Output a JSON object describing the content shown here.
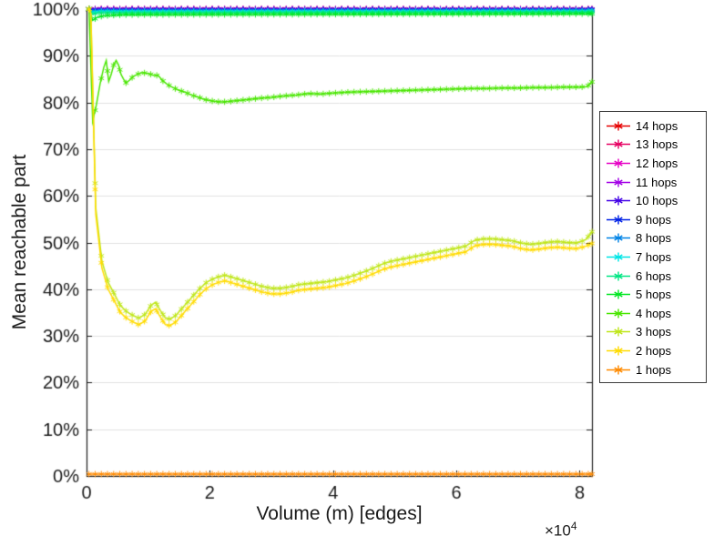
{
  "figure": {
    "background": "#ffffff",
    "box_color": "#1a1a1a",
    "grid_color": "#e0e0e0"
  },
  "chart_data": {
    "type": "line",
    "title": "",
    "xlabel": "Volume (m) [edges]",
    "ylabel": "Mean reachable part",
    "x_exponent": {
      "base": "×10",
      "power": "4"
    },
    "xlim": [
      0,
      82000
    ],
    "ylim": [
      0,
      100
    ],
    "grid": "horizontal",
    "legend_position": "right-outside",
    "marker": "asterisk",
    "sample_step": 1000,
    "xticks": [
      0,
      20000,
      40000,
      60000,
      80000
    ],
    "xtick_labels": [
      "0",
      "2",
      "4",
      "6",
      "8"
    ],
    "yticks": [
      0,
      10,
      20,
      30,
      40,
      50,
      60,
      70,
      80,
      90,
      100
    ],
    "ytick_labels": [
      "0%",
      "10%",
      "20%",
      "30%",
      "40%",
      "50%",
      "60%",
      "70%",
      "80%",
      "90%",
      "100%"
    ],
    "series": [
      {
        "name": "1 hops",
        "color": "#FF8A00",
        "points": [
          [
            400,
            0.4
          ],
          [
            82000,
            0.4
          ]
        ]
      },
      {
        "name": "2 hops",
        "color": "#FFDB00",
        "points": [
          [
            400,
            100
          ],
          [
            700,
            99
          ],
          [
            1500,
            56
          ],
          [
            2500,
            44.5
          ],
          [
            3500,
            40
          ],
          [
            4500,
            37.5
          ],
          [
            5500,
            35
          ],
          [
            6500,
            33.8
          ],
          [
            7500,
            33
          ],
          [
            8500,
            32.4
          ],
          [
            9500,
            33.2
          ],
          [
            10500,
            35.3
          ],
          [
            11200,
            35.8
          ],
          [
            12000,
            34
          ],
          [
            12800,
            32.4
          ],
          [
            13600,
            32.2
          ],
          [
            14500,
            33
          ],
          [
            15500,
            34.5
          ],
          [
            16500,
            36
          ],
          [
            17500,
            37.5
          ],
          [
            18500,
            39
          ],
          [
            19500,
            40.2
          ],
          [
            20500,
            41
          ],
          [
            21500,
            41.5
          ],
          [
            22500,
            41.8
          ],
          [
            23500,
            41.4
          ],
          [
            24500,
            41
          ],
          [
            25500,
            40.6
          ],
          [
            27000,
            40
          ],
          [
            28500,
            39.4
          ],
          [
            30000,
            39
          ],
          [
            31500,
            39
          ],
          [
            33000,
            39.3
          ],
          [
            34500,
            39.8
          ],
          [
            36000,
            40
          ],
          [
            37500,
            40.2
          ],
          [
            39000,
            40.4
          ],
          [
            40500,
            40.8
          ],
          [
            42000,
            41.2
          ],
          [
            43500,
            41.8
          ],
          [
            45000,
            42.5
          ],
          [
            46500,
            43.3
          ],
          [
            48000,
            44.2
          ],
          [
            49500,
            44.8
          ],
          [
            51000,
            45.2
          ],
          [
            52500,
            45.6
          ],
          [
            54000,
            46
          ],
          [
            55500,
            46.4
          ],
          [
            57000,
            46.8
          ],
          [
            58500,
            47.2
          ],
          [
            60000,
            47.6
          ],
          [
            61500,
            48
          ],
          [
            63000,
            49.3
          ],
          [
            64500,
            49.6
          ],
          [
            66000,
            49.6
          ],
          [
            67500,
            49.4
          ],
          [
            69000,
            49.2
          ],
          [
            70500,
            48.7
          ],
          [
            72000,
            48.4
          ],
          [
            73500,
            48.6
          ],
          [
            75000,
            48.9
          ],
          [
            76500,
            49
          ],
          [
            78000,
            48.8
          ],
          [
            79500,
            48.7
          ],
          [
            81000,
            49.2
          ],
          [
            82000,
            49.8
          ]
        ]
      },
      {
        "name": "3 hops",
        "color": "#BFE619",
        "points": [
          [
            400,
            100
          ],
          [
            700,
            99.2
          ],
          [
            1500,
            57.5
          ],
          [
            2500,
            46
          ],
          [
            3500,
            41.5
          ],
          [
            4500,
            39
          ],
          [
            5500,
            36.5
          ],
          [
            6500,
            35.2
          ],
          [
            7500,
            34.4
          ],
          [
            8500,
            33.8
          ],
          [
            9500,
            34.6
          ],
          [
            10500,
            36.6
          ],
          [
            11200,
            37.2
          ],
          [
            12000,
            35.4
          ],
          [
            12800,
            33.8
          ],
          [
            13600,
            33.6
          ],
          [
            14500,
            34.4
          ],
          [
            15500,
            35.9
          ],
          [
            16500,
            37.4
          ],
          [
            17500,
            38.9
          ],
          [
            18500,
            40.3
          ],
          [
            19500,
            41.5
          ],
          [
            20500,
            42.2
          ],
          [
            21500,
            42.7
          ],
          [
            22500,
            43
          ],
          [
            23500,
            42.6
          ],
          [
            24500,
            42.2
          ],
          [
            25500,
            41.8
          ],
          [
            27000,
            41.2
          ],
          [
            28500,
            40.6
          ],
          [
            30000,
            40.2
          ],
          [
            31500,
            40.2
          ],
          [
            33000,
            40.5
          ],
          [
            34500,
            41
          ],
          [
            36000,
            41.2
          ],
          [
            37500,
            41.4
          ],
          [
            39000,
            41.6
          ],
          [
            40500,
            42
          ],
          [
            42000,
            42.4
          ],
          [
            43500,
            43
          ],
          [
            45000,
            43.7
          ],
          [
            46500,
            44.5
          ],
          [
            48000,
            45.4
          ],
          [
            49500,
            46
          ],
          [
            51000,
            46.4
          ],
          [
            52500,
            46.8
          ],
          [
            54000,
            47.2
          ],
          [
            55500,
            47.6
          ],
          [
            57000,
            48
          ],
          [
            58500,
            48.4
          ],
          [
            60000,
            48.8
          ],
          [
            61500,
            49.2
          ],
          [
            63000,
            50.5
          ],
          [
            64500,
            50.8
          ],
          [
            66000,
            50.8
          ],
          [
            67500,
            50.6
          ],
          [
            69000,
            50.4
          ],
          [
            70500,
            49.9
          ],
          [
            72000,
            49.6
          ],
          [
            73500,
            49.8
          ],
          [
            75000,
            50.1
          ],
          [
            76500,
            50.2
          ],
          [
            78000,
            50
          ],
          [
            79500,
            49.9
          ],
          [
            81000,
            50.6
          ],
          [
            82000,
            52.3
          ]
        ]
      },
      {
        "name": "4 hops",
        "color": "#49E600",
        "points": [
          [
            400,
            100
          ],
          [
            1000,
            76
          ],
          [
            1600,
            79.5
          ],
          [
            2200,
            84
          ],
          [
            2800,
            87.5
          ],
          [
            3200,
            89
          ],
          [
            3600,
            84.5
          ],
          [
            4000,
            86
          ],
          [
            4400,
            88
          ],
          [
            4800,
            89
          ],
          [
            5200,
            88
          ],
          [
            5600,
            86
          ],
          [
            6000,
            85
          ],
          [
            6400,
            84.2
          ],
          [
            7000,
            84.8
          ],
          [
            7600,
            85.6
          ],
          [
            8200,
            86
          ],
          [
            9000,
            86.4
          ],
          [
            10000,
            86.2
          ],
          [
            11000,
            85.8
          ],
          [
            11600,
            85.8
          ],
          [
            12400,
            84.6
          ],
          [
            13200,
            83.8
          ],
          [
            14000,
            83.2
          ],
          [
            15000,
            82.6
          ],
          [
            16000,
            82.2
          ],
          [
            17000,
            81.6
          ],
          [
            18000,
            81.2
          ],
          [
            19000,
            80.7
          ],
          [
            20000,
            80.4
          ],
          [
            21000,
            80.2
          ],
          [
            22000,
            80.1
          ],
          [
            23000,
            80.2
          ],
          [
            24500,
            80.4
          ],
          [
            26000,
            80.6
          ],
          [
            28000,
            80.9
          ],
          [
            30000,
            81.1
          ],
          [
            32000,
            81.4
          ],
          [
            34000,
            81.6
          ],
          [
            36000,
            81.9
          ],
          [
            38000,
            81.8
          ],
          [
            40000,
            82
          ],
          [
            42500,
            82.2
          ],
          [
            45000,
            82.3
          ],
          [
            47500,
            82.4
          ],
          [
            50000,
            82.5
          ],
          [
            52500,
            82.6
          ],
          [
            55000,
            82.7
          ],
          [
            57500,
            82.8
          ],
          [
            60000,
            82.9
          ],
          [
            62500,
            83
          ],
          [
            65000,
            83
          ],
          [
            67500,
            83.1
          ],
          [
            70000,
            83.1
          ],
          [
            72500,
            83.2
          ],
          [
            75000,
            83.2
          ],
          [
            77500,
            83.3
          ],
          [
            80000,
            83.3
          ],
          [
            81200,
            83.4
          ],
          [
            82000,
            84.4
          ]
        ]
      },
      {
        "name": "5 hops",
        "color": "#00E621",
        "points": [
          [
            400,
            100
          ],
          [
            1000,
            97.6
          ],
          [
            1800,
            98.3
          ],
          [
            3000,
            98.6
          ],
          [
            6000,
            98.8
          ],
          [
            82000,
            99
          ]
        ]
      },
      {
        "name": "6 hops",
        "color": "#00E683",
        "points": [
          [
            400,
            100
          ],
          [
            1000,
            98.9
          ],
          [
            2000,
            99.2
          ],
          [
            82000,
            99.35
          ]
        ]
      },
      {
        "name": "7 hops",
        "color": "#00E6E6",
        "points": [
          [
            400,
            100
          ],
          [
            1000,
            99.3
          ],
          [
            2000,
            99.5
          ],
          [
            82000,
            99.55
          ]
        ]
      },
      {
        "name": "8 hops",
        "color": "#0083E6",
        "points": [
          [
            400,
            100
          ],
          [
            1000,
            99.55
          ],
          [
            2000,
            99.65
          ],
          [
            82000,
            99.7
          ]
        ]
      },
      {
        "name": "9 hops",
        "color": "#0021E6",
        "points": [
          [
            400,
            100
          ],
          [
            1000,
            99.75
          ],
          [
            82000,
            99.85
          ]
        ]
      },
      {
        "name": "10 hops",
        "color": "#4100E6",
        "points": [
          [
            400,
            100
          ],
          [
            1000,
            99.9
          ],
          [
            82000,
            99.92
          ]
        ]
      },
      {
        "name": "11 hops",
        "color": "#A300E6",
        "points": [
          [
            400,
            100
          ],
          [
            82000,
            99.96
          ]
        ]
      },
      {
        "name": "12 hops",
        "color": "#E600C5",
        "points": [
          [
            400,
            100
          ],
          [
            82000,
            99.98
          ]
        ]
      },
      {
        "name": "13 hops",
        "color": "#E60062",
        "points": [
          [
            400,
            100
          ],
          [
            82000,
            99.99
          ]
        ]
      },
      {
        "name": "14 hops",
        "color": "#E60000",
        "points": [
          [
            400,
            100
          ],
          [
            82000,
            100
          ]
        ]
      }
    ]
  }
}
